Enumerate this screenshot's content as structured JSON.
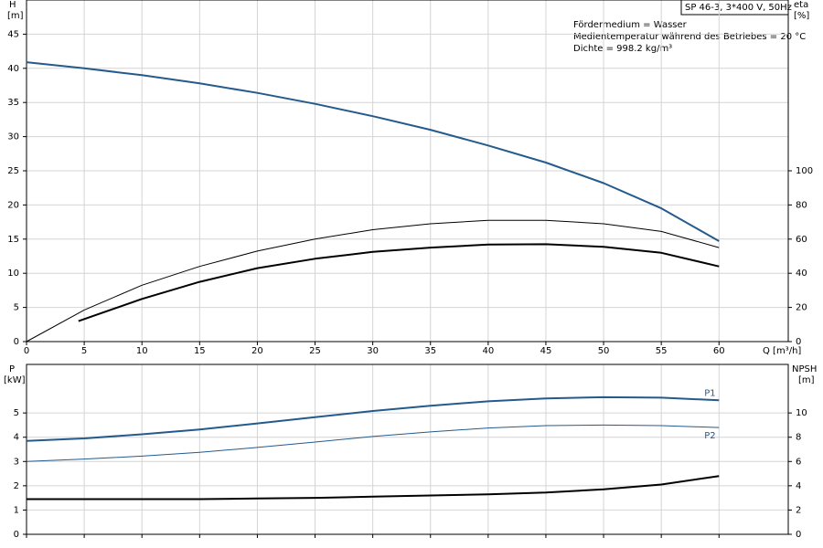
{
  "chart_data": [
    {
      "type": "line",
      "subtitle": "SP 46-3, 3*400 V, 50Hz",
      "annotations": [
        "Fördermedium = Wasser",
        "Medientemperatur während des Betriebes = 20 °C",
        "Dichte = 998.2 kg/m³"
      ],
      "ylabel": "H",
      "yunit": "[m]",
      "y2label": "eta",
      "y2unit": "[%]",
      "xlabel": "Q [m³/h]",
      "xlim": [
        0,
        66
      ],
      "xticks": [
        0,
        5,
        10,
        15,
        20,
        25,
        30,
        35,
        40,
        45,
        50,
        55,
        60
      ],
      "ylim": [
        0,
        50
      ],
      "yticks": [
        0,
        5,
        10,
        15,
        20,
        25,
        30,
        35,
        40,
        45
      ],
      "y2lim": [
        0,
        200
      ],
      "y2ticks": [
        0,
        20,
        40,
        60,
        80,
        100
      ],
      "grid": true,
      "series": [
        {
          "color": "#245a8c",
          "x": [
            0,
            5,
            10,
            15,
            20,
            25,
            30,
            35,
            40,
            45,
            50,
            55,
            60
          ],
          "values": [
            40.9,
            40.0,
            39.0,
            37.8,
            36.4,
            34.8,
            33.0,
            31.0,
            28.7,
            26.2,
            23.2,
            19.5,
            14.7
          ]
        },
        {
          "color": "#000000",
          "axis": "y2",
          "x": [
            0,
            5,
            10,
            15,
            20,
            25,
            30,
            35,
            40,
            45,
            50,
            55,
            60
          ],
          "values": [
            0,
            18.5,
            33,
            44,
            53,
            60,
            65.5,
            69,
            71,
            71,
            69,
            64.5,
            55
          ]
        },
        {
          "color": "#000000",
          "axis": "y2",
          "x": [
            4.5,
            10,
            15,
            20,
            25,
            30,
            35,
            40,
            45,
            50,
            55,
            60
          ],
          "values": [
            12,
            25,
            35,
            43,
            48.5,
            52.5,
            55,
            56.8,
            57,
            55.5,
            52,
            44
          ]
        }
      ]
    },
    {
      "type": "line",
      "ylabel": "P",
      "yunit": "[kW]",
      "y2label": "NPSH",
      "y2unit": "[m]",
      "xlim": [
        0,
        66
      ],
      "ylim": [
        0,
        7
      ],
      "yticks": [
        0,
        1,
        2,
        3,
        4,
        5
      ],
      "y2lim": [
        0,
        14
      ],
      "y2ticks": [
        0,
        2,
        4,
        6,
        8,
        10
      ],
      "grid": true,
      "series": [
        {
          "name": "P1",
          "color": "#245a8c",
          "x": [
            0,
            5,
            10,
            15,
            20,
            25,
            30,
            35,
            40,
            45,
            50,
            55,
            60
          ],
          "values": [
            3.85,
            3.95,
            4.12,
            4.32,
            4.57,
            4.83,
            5.08,
            5.3,
            5.48,
            5.6,
            5.65,
            5.63,
            5.52
          ]
        },
        {
          "name": "P2",
          "color": "#245a8c",
          "x": [
            0,
            5,
            10,
            15,
            20,
            25,
            30,
            35,
            40,
            45,
            50,
            55,
            60
          ],
          "values": [
            3.0,
            3.1,
            3.22,
            3.38,
            3.58,
            3.8,
            4.03,
            4.22,
            4.38,
            4.48,
            4.5,
            4.48,
            4.4
          ]
        },
        {
          "color": "#000000",
          "axis": "y2",
          "x": [
            0,
            5,
            10,
            15,
            20,
            25,
            30,
            35,
            40,
            45,
            50,
            55,
            60
          ],
          "values": [
            2.9,
            2.9,
            2.9,
            2.9,
            2.95,
            3.0,
            3.1,
            3.2,
            3.3,
            3.45,
            3.7,
            4.1,
            4.8
          ]
        }
      ]
    }
  ]
}
